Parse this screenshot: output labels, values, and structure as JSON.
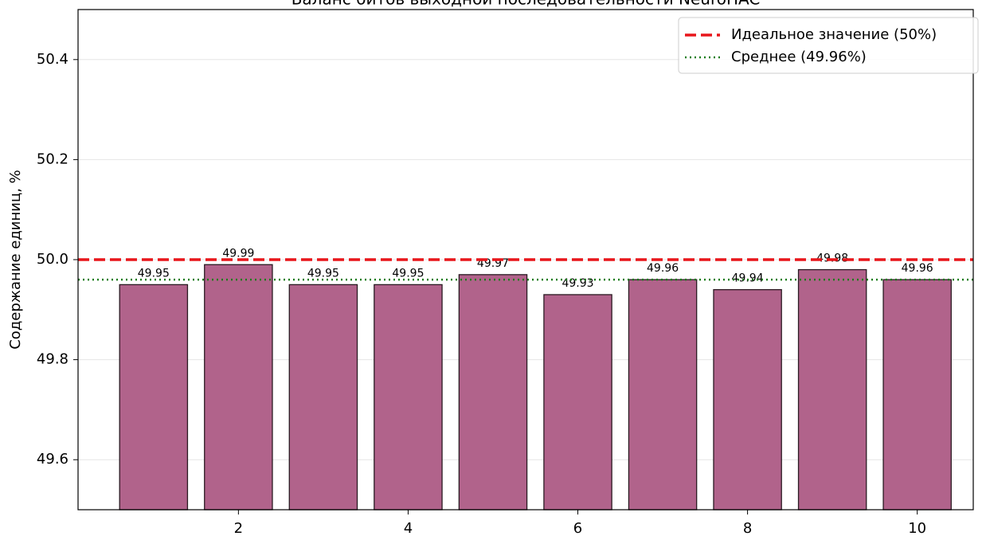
{
  "chart_data": {
    "type": "bar",
    "title": "Баланс битов выходной последовательности NeuroHAC",
    "ylabel": "Содержание единиц, %",
    "x": [
      1,
      2,
      3,
      4,
      5,
      6,
      7,
      8,
      9,
      10
    ],
    "values": [
      49.95,
      49.99,
      49.95,
      49.95,
      49.97,
      49.93,
      49.96,
      49.94,
      49.98,
      49.96
    ],
    "color": "#b1638b",
    "edgecolor": "#2a1a22",
    "xlim": [
      0.11,
      10.66
    ],
    "xticks": [
      2,
      4,
      6,
      8,
      10
    ],
    "ylim": [
      49.5,
      50.5
    ],
    "yticks": [
      49.6,
      49.8,
      {
        "value": 50,
        "label": "50.0"
      },
      50.2,
      50.4
    ],
    "grid": true,
    "legend": "upper right",
    "hlines": [
      {
        "name": "Идеальное значение (50%)",
        "value": 50,
        "color": "#e8161b",
        "style": "dashed"
      },
      {
        "name": "Среднее (49.96%)",
        "value": 49.96,
        "color": "#1a7d1a",
        "style": "dotted"
      }
    ]
  }
}
